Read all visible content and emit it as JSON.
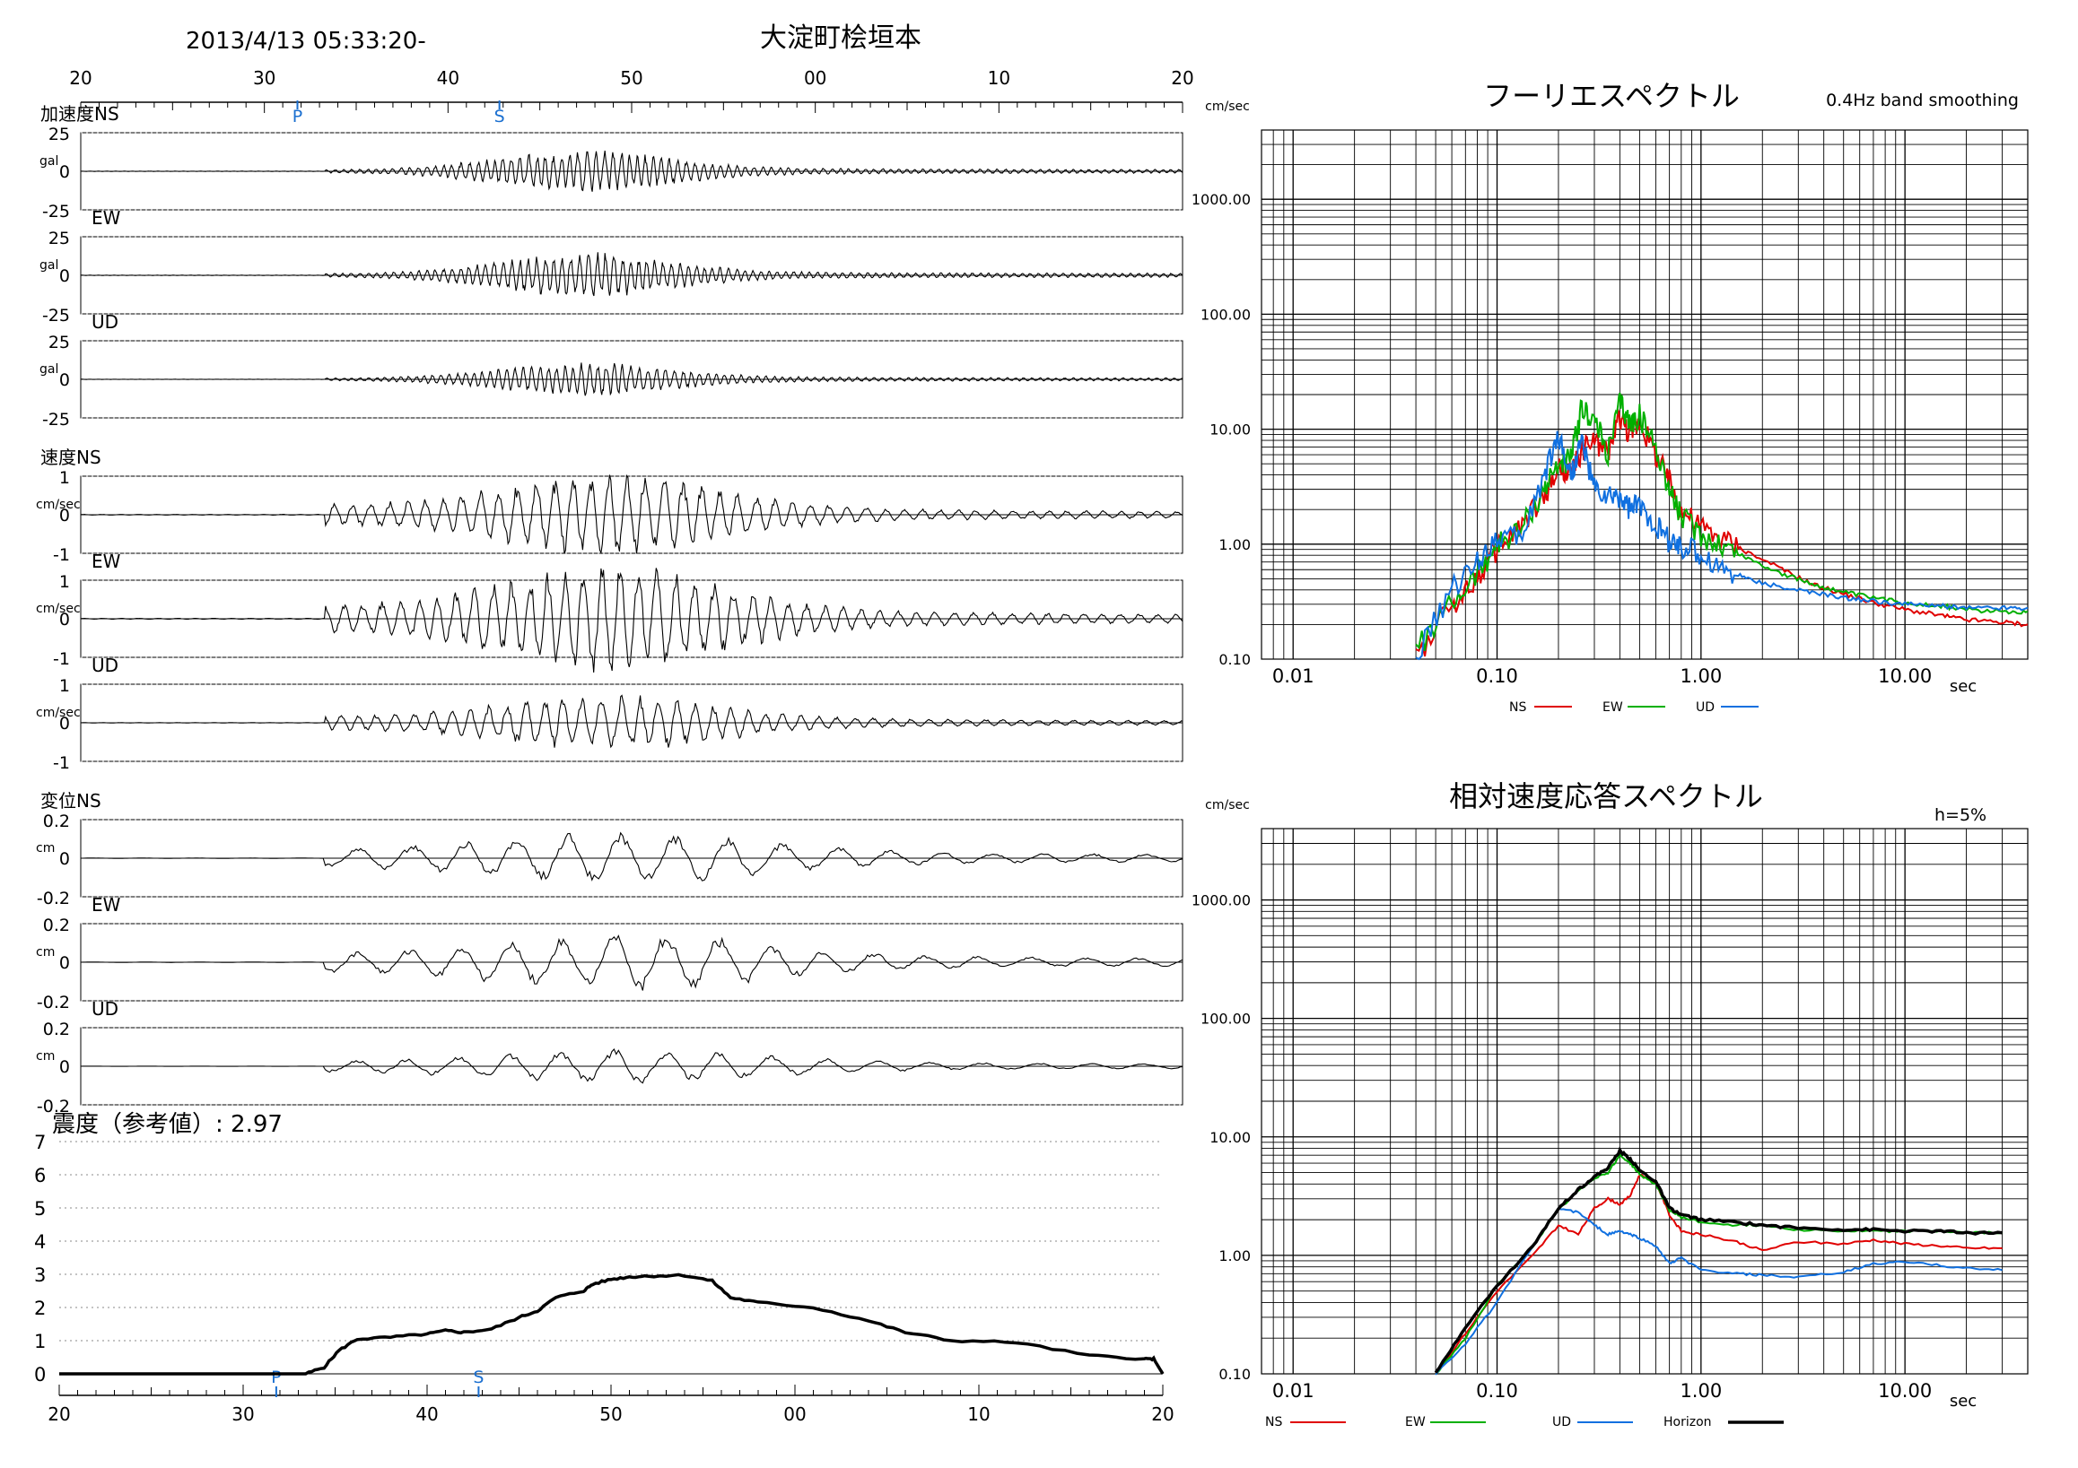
{
  "header": {
    "datetime": "2013/4/13 05:33:20-",
    "station": "大淀町桧垣本"
  },
  "colors": {
    "ns": "#e00000",
    "ew": "#00b000",
    "ud": "#1070e0",
    "horizon": "#000000",
    "marker": "#1a6fd0"
  },
  "chart_data": [
    {
      "id": "waveforms",
      "type": "line",
      "time_ticks": [
        "20",
        "30",
        "40",
        "50",
        "00",
        "10",
        "20"
      ],
      "time_range_s": [
        0,
        60
      ],
      "markers": [
        {
          "label": "P",
          "t": 11.8
        },
        {
          "label": "S",
          "t": 22.8
        }
      ],
      "panels": [
        {
          "group": "加速度",
          "component": "NS",
          "unit": "gal",
          "ticks": [
            "25",
            "0",
            "-25"
          ],
          "ylim": [
            -25,
            25
          ],
          "peak": 13,
          "seed": 11
        },
        {
          "group": "",
          "component": "EW",
          "unit": "gal",
          "ticks": [
            "25",
            "0",
            "-25"
          ],
          "ylim": [
            -25,
            25
          ],
          "peak": 14,
          "seed": 23
        },
        {
          "group": "",
          "component": "UD",
          "unit": "gal",
          "ticks": [
            "25",
            "0",
            "-25"
          ],
          "ylim": [
            -25,
            25
          ],
          "peak": 10,
          "seed": 37
        },
        {
          "group": "速度",
          "component": "NS",
          "unit": "cm/sec",
          "ticks": [
            "1",
            "0",
            "-1"
          ],
          "ylim": [
            -1,
            1
          ],
          "peak": 0.9,
          "seed": 41
        },
        {
          "group": "",
          "component": "EW",
          "unit": "cm/sec",
          "ticks": [
            "1",
            "0",
            "-1"
          ],
          "ylim": [
            -1,
            1
          ],
          "peak": 1.2,
          "seed": 53
        },
        {
          "group": "",
          "component": "UD",
          "unit": "cm/sec",
          "ticks": [
            "1",
            "0",
            "-1"
          ],
          "ylim": [
            -1,
            1
          ],
          "peak": 0.6,
          "seed": 67
        },
        {
          "group": "変位",
          "component": "NS",
          "unit": "cm",
          "ticks": [
            "0.2",
            "0",
            "-0.2"
          ],
          "ylim": [
            -0.2,
            0.2
          ],
          "peak": 0.11,
          "seed": 71
        },
        {
          "group": "",
          "component": "EW",
          "unit": "cm",
          "ticks": [
            "0.2",
            "0",
            "-0.2"
          ],
          "ylim": [
            -0.2,
            0.2
          ],
          "peak": 0.12,
          "seed": 83
        },
        {
          "group": "",
          "component": "UD",
          "unit": "cm",
          "ticks": [
            "0.2",
            "0",
            "-0.2"
          ],
          "ylim": [
            -0.2,
            0.2
          ],
          "peak": 0.07,
          "seed": 97
        }
      ]
    },
    {
      "id": "intensity",
      "type": "line",
      "title": "震度（参考値）: 2.97",
      "ylim": [
        0,
        7
      ],
      "yticks": [
        "0",
        "1",
        "2",
        "3",
        "4",
        "5",
        "6",
        "7"
      ],
      "x_s": [
        0,
        13.4,
        14.4,
        15.2,
        16.2,
        18,
        20,
        21,
        22,
        23.5,
        25,
        26,
        27,
        28.5,
        29,
        30,
        31,
        32,
        34,
        35.5,
        36.5,
        38,
        41,
        44,
        46,
        48.5,
        52,
        56,
        59,
        59.5,
        60
      ],
      "y": [
        0,
        0,
        0.2,
        0.7,
        1.05,
        1.1,
        1.2,
        1.3,
        1.25,
        1.35,
        1.7,
        1.9,
        2.3,
        2.5,
        2.7,
        2.85,
        2.92,
        2.95,
        2.97,
        2.8,
        2.3,
        2.15,
        2.0,
        1.6,
        1.25,
        1.0,
        0.95,
        0.55,
        0.45,
        0.45,
        0
      ]
    },
    {
      "id": "fourier",
      "type": "line",
      "title": "フーリエスペクトル",
      "subtitle": "0.4Hz band smoothing",
      "ylabel": "cm/sec",
      "xlabel": "sec",
      "xscale": "log",
      "yscale": "log",
      "xlim": [
        0.007,
        40
      ],
      "ylim": [
        0.1,
        4000
      ],
      "xticks": [
        "0.01",
        "0.10",
        "1.00",
        "10.00"
      ],
      "yticks": [
        "0.10",
        "1.00",
        "10.00",
        "100.00",
        "1000.00"
      ],
      "legend": [
        "NS",
        "EW",
        "UD"
      ],
      "series": [
        {
          "name": "NS",
          "x": [
            0.04,
            0.06,
            0.08,
            0.1,
            0.13,
            0.17,
            0.2,
            0.23,
            0.26,
            0.3,
            0.35,
            0.4,
            0.45,
            0.5,
            0.6,
            0.7,
            0.8,
            1.0,
            1.3,
            1.7,
            2.5,
            3.5,
            5,
            7,
            10,
            15,
            20,
            30,
            40
          ],
          "y": [
            0.1,
            0.3,
            0.5,
            0.9,
            1.4,
            2.5,
            4.5,
            4,
            6.5,
            8,
            6,
            13,
            9,
            12,
            6,
            3.5,
            2,
            1.4,
            1.1,
            0.85,
            0.6,
            0.45,
            0.37,
            0.31,
            0.27,
            0.24,
            0.22,
            0.21,
            0.2
          ]
        },
        {
          "name": "EW",
          "x": [
            0.04,
            0.06,
            0.08,
            0.1,
            0.13,
            0.17,
            0.2,
            0.23,
            0.26,
            0.3,
            0.35,
            0.4,
            0.45,
            0.5,
            0.6,
            0.7,
            0.8,
            1.0,
            1.3,
            1.7,
            2.5,
            3.5,
            5,
            7,
            10,
            15,
            20,
            30,
            40
          ],
          "y": [
            0.12,
            0.3,
            0.55,
            1.0,
            1.3,
            3,
            5,
            5.5,
            15,
            12,
            6,
            17,
            11,
            13,
            7,
            3,
            1.7,
            1.2,
            0.95,
            0.75,
            0.55,
            0.45,
            0.38,
            0.34,
            0.31,
            0.29,
            0.27,
            0.26,
            0.26
          ]
        },
        {
          "name": "UD",
          "x": [
            0.04,
            0.06,
            0.08,
            0.1,
            0.13,
            0.17,
            0.2,
            0.23,
            0.26,
            0.3,
            0.35,
            0.4,
            0.45,
            0.5,
            0.6,
            0.7,
            0.8,
            1.0,
            1.3,
            1.7,
            2.5,
            3.5,
            5,
            7,
            10,
            15,
            20,
            30,
            40
          ],
          "y": [
            0.1,
            0.4,
            0.7,
            1.2,
            1.1,
            4,
            9,
            4,
            8,
            3,
            2.5,
            2.6,
            2,
            2.2,
            1.5,
            1.05,
            0.95,
            0.8,
            0.6,
            0.5,
            0.42,
            0.38,
            0.34,
            0.32,
            0.3,
            0.29,
            0.28,
            0.28,
            0.28
          ]
        }
      ]
    },
    {
      "id": "response",
      "type": "line",
      "title": "相対速度応答スペクトル",
      "subtitle": "h=5%",
      "ylabel": "cm/sec",
      "xlabel": "sec",
      "xscale": "log",
      "yscale": "log",
      "xlim": [
        0.007,
        40
      ],
      "ylim": [
        0.1,
        4000
      ],
      "xticks": [
        "0.01",
        "0.10",
        "1.00",
        "10.00"
      ],
      "yticks": [
        "0.10",
        "1.00",
        "10.00",
        "100.00",
        "1000.00"
      ],
      "legend": [
        "NS",
        "EW",
        "UD",
        "Horizon"
      ],
      "series": [
        {
          "name": "NS",
          "x": [
            0.05,
            0.07,
            0.1,
            0.15,
            0.2,
            0.25,
            0.3,
            0.35,
            0.4,
            0.45,
            0.5,
            0.6,
            0.7,
            0.8,
            1.0,
            1.5,
            2,
            3,
            5,
            7,
            10,
            15,
            20,
            30
          ],
          "y": [
            0.1,
            0.22,
            0.5,
            1.0,
            1.8,
            1.5,
            2.5,
            3,
            2.7,
            3.2,
            4.8,
            4.2,
            2.2,
            1.6,
            1.5,
            1.3,
            1.1,
            1.3,
            1.25,
            1.35,
            1.25,
            1.2,
            1.15,
            1.15
          ]
        },
        {
          "name": "EW",
          "x": [
            0.05,
            0.07,
            0.1,
            0.15,
            0.2,
            0.25,
            0.3,
            0.35,
            0.4,
            0.45,
            0.5,
            0.6,
            0.7,
            0.8,
            1.0,
            1.5,
            2,
            3,
            5,
            7,
            10,
            15,
            20,
            30
          ],
          "y": [
            0.1,
            0.2,
            0.55,
            1.2,
            2.4,
            3.5,
            4.5,
            5,
            7,
            6,
            4.8,
            4,
            2.4,
            2.1,
            1.9,
            1.8,
            1.8,
            1.65,
            1.6,
            1.6,
            1.6,
            1.6,
            1.55,
            1.55
          ]
        },
        {
          "name": "UD",
          "x": [
            0.05,
            0.07,
            0.1,
            0.15,
            0.2,
            0.25,
            0.3,
            0.35,
            0.4,
            0.45,
            0.5,
            0.6,
            0.7,
            0.8,
            1.0,
            1.5,
            2,
            3,
            5,
            7,
            10,
            15,
            20,
            30
          ],
          "y": [
            0.1,
            0.18,
            0.4,
            1.2,
            2.5,
            2.3,
            1.8,
            1.5,
            1.6,
            1.5,
            1.4,
            1.2,
            0.85,
            0.95,
            0.75,
            0.7,
            0.68,
            0.65,
            0.72,
            0.85,
            0.88,
            0.82,
            0.78,
            0.75
          ]
        },
        {
          "name": "Horizon",
          "x": [
            0.05,
            0.07,
            0.1,
            0.15,
            0.2,
            0.25,
            0.3,
            0.35,
            0.4,
            0.45,
            0.5,
            0.6,
            0.7,
            0.8,
            1.0,
            1.5,
            2,
            3,
            5,
            7,
            10,
            15,
            20,
            30
          ],
          "y": [
            0.1,
            0.25,
            0.55,
            1.2,
            2.5,
            3.6,
            4.6,
            5.5,
            7.6,
            6.5,
            5.2,
            4.2,
            2.5,
            2.2,
            2.0,
            1.9,
            1.8,
            1.7,
            1.65,
            1.65,
            1.6,
            1.6,
            1.55,
            1.55
          ]
        }
      ]
    }
  ]
}
